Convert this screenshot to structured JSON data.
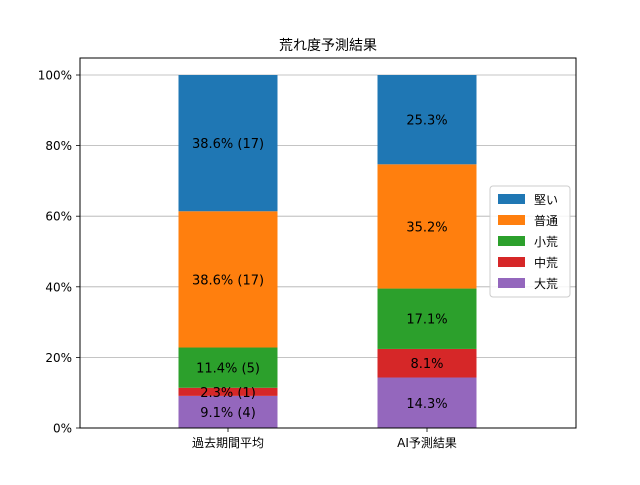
{
  "chart_data": {
    "type": "bar",
    "stacked": true,
    "title": "荒れ度予測結果",
    "xlabel": "",
    "ylabel": "",
    "ylim": [
      0,
      100
    ],
    "y_ticks": [
      0,
      20,
      40,
      60,
      80,
      100
    ],
    "y_tick_format": "percent",
    "grid": "y",
    "legend_placement": "center-right",
    "categories": [
      "過去期間平均",
      "AI予測結果"
    ],
    "series": [
      {
        "name": "大荒",
        "color": "#9467bd",
        "values": [
          9.1,
          14.3
        ],
        "labels": [
          "9.1% (4)",
          "14.3%"
        ]
      },
      {
        "name": "中荒",
        "color": "#d62728",
        "values": [
          2.3,
          8.1
        ],
        "labels": [
          "2.3% (1)",
          "8.1%"
        ]
      },
      {
        "name": "小荒",
        "color": "#2ca02c",
        "values": [
          11.4,
          17.1
        ],
        "labels": [
          "11.4% (5)",
          "17.1%"
        ]
      },
      {
        "name": "普通",
        "color": "#ff7f0e",
        "values": [
          38.6,
          35.2
        ],
        "labels": [
          "38.6% (17)",
          "35.2%"
        ]
      },
      {
        "name": "堅い",
        "color": "#1f77b4",
        "values": [
          38.6,
          25.3
        ],
        "labels": [
          "38.6% (17)",
          "25.3%"
        ]
      }
    ],
    "legend_order": [
      "堅い",
      "普通",
      "小荒",
      "中荒",
      "大荒"
    ]
  }
}
